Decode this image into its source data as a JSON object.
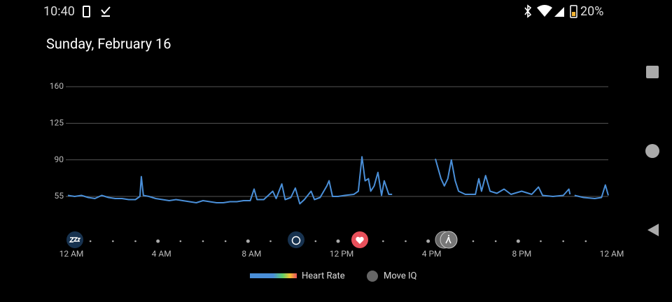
{
  "status_bar": {
    "time": "10:40",
    "battery": "20%"
  },
  "header": {
    "title": "Sunday, February 16"
  },
  "chart_data": {
    "type": "line",
    "xlim": [
      0,
      24
    ],
    "xticks": [
      {
        "value": 0,
        "label": "12 AM"
      },
      {
        "value": 4,
        "label": "4 AM"
      },
      {
        "value": 8,
        "label": "8 AM"
      },
      {
        "value": 12,
        "label": "12 PM"
      },
      {
        "value": 16,
        "label": "4 PM"
      },
      {
        "value": 20,
        "label": "8 PM"
      },
      {
        "value": 24,
        "label": "12 AM"
      }
    ],
    "ylim": [
      30,
      160
    ],
    "yticks": [
      55,
      90,
      125,
      160
    ],
    "grid": true,
    "series": [
      {
        "name": "Heart Rate",
        "color": "#4a8fd8",
        "x": [
          0,
          0.3,
          0.6,
          0.9,
          1.2,
          1.5,
          1.8,
          2.1,
          2.4,
          2.7,
          3.0,
          3.2,
          3.26,
          3.35,
          3.6,
          3.9,
          4.2,
          4.5,
          4.8,
          5.1,
          5.4,
          5.7,
          6.0,
          6.3,
          6.6,
          6.9,
          7.2,
          7.5,
          7.8,
          8.1,
          8.27,
          8.4,
          8.7,
          9.1,
          9.25,
          9.5,
          9.65,
          9.9,
          10.1,
          10.3,
          10.5,
          10.8,
          10.95,
          11.2,
          11.5,
          11.6,
          11.75,
          12.0,
          12.3,
          12.7,
          12.9,
          13.06,
          13.2,
          13.35,
          13.45,
          13.6,
          13.77,
          13.93,
          14.05,
          14.25,
          14.4,
          15.3,
          16.32,
          16.4,
          16.57,
          16.72,
          16.87,
          17.03,
          17.2,
          17.35,
          17.65,
          18.1,
          18.25,
          18.37,
          18.55,
          18.75,
          19.05,
          19.37,
          19.68,
          20.15,
          20.6,
          20.9,
          21.08,
          21.54,
          22.0,
          22.25,
          22.3,
          22.4,
          22.5,
          22.9,
          23.4,
          23.7,
          23.87,
          24
        ],
        "values": [
          56,
          55,
          56,
          54,
          53,
          56,
          54,
          53,
          53,
          52,
          52,
          55,
          74,
          56,
          55,
          53,
          52,
          51,
          52,
          51,
          50,
          49,
          51,
          50,
          49,
          49,
          50,
          50,
          51,
          51,
          62,
          52,
          52,
          60,
          53,
          67,
          52,
          54,
          63,
          48,
          52,
          60,
          52,
          54,
          65,
          70,
          55,
          55,
          56,
          57,
          60,
          93,
          70,
          72,
          60,
          65,
          78,
          56,
          70,
          57,
          57,
          null,
          91,
          85,
          72,
          65,
          72,
          90,
          70,
          60,
          57,
          57,
          72,
          60,
          75,
          60,
          58,
          62,
          57,
          60,
          57,
          64,
          56,
          55,
          56,
          62,
          57,
          null,
          56,
          54,
          53,
          54,
          66,
          56
        ]
      }
    ],
    "legend": [
      "Heart Rate",
      "Move IQ"
    ]
  }
}
